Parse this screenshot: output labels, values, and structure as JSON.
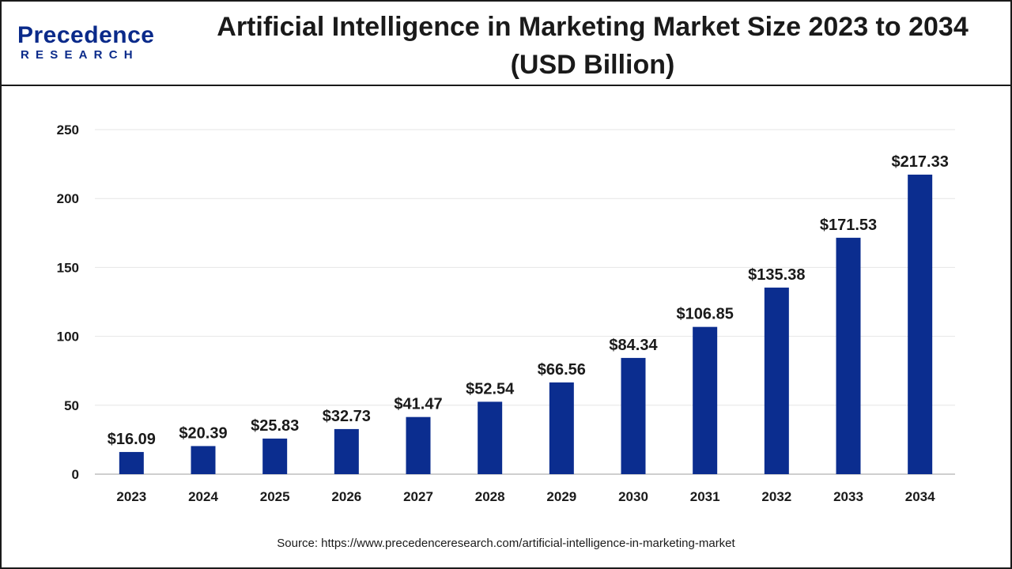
{
  "header": {
    "logo_main": "Precedence",
    "logo_sub": "RESEARCH",
    "title": "Artificial Intelligence in Marketing Market Size 2023 to 2034 (USD Billion)"
  },
  "chart_data": {
    "type": "bar",
    "title": "Artificial Intelligence in Marketing Market Size 2023 to 2034 (USD Billion)",
    "xlabel": "",
    "ylabel": "",
    "categories": [
      "2023",
      "2024",
      "2025",
      "2026",
      "2027",
      "2028",
      "2029",
      "2030",
      "2031",
      "2032",
      "2033",
      "2034"
    ],
    "values": [
      16.09,
      20.39,
      25.83,
      32.73,
      41.47,
      52.54,
      66.56,
      84.34,
      106.85,
      135.38,
      171.53,
      217.33
    ],
    "data_labels": [
      "$16.09",
      "$20.39",
      "$25.83",
      "$32.73",
      "$41.47",
      "$52.54",
      "$66.56",
      "$84.34",
      "$106.85",
      "$135.38",
      "$171.53",
      "$217.33"
    ],
    "ylim": [
      0,
      250
    ],
    "yticks": [
      0,
      50,
      100,
      150,
      200,
      250
    ],
    "grid": true,
    "legend": "none",
    "bar_color": "#0b2d8f"
  },
  "source": "Source: https://www.precedenceresearch.com/artificial-intelligence-in-marketing-market"
}
